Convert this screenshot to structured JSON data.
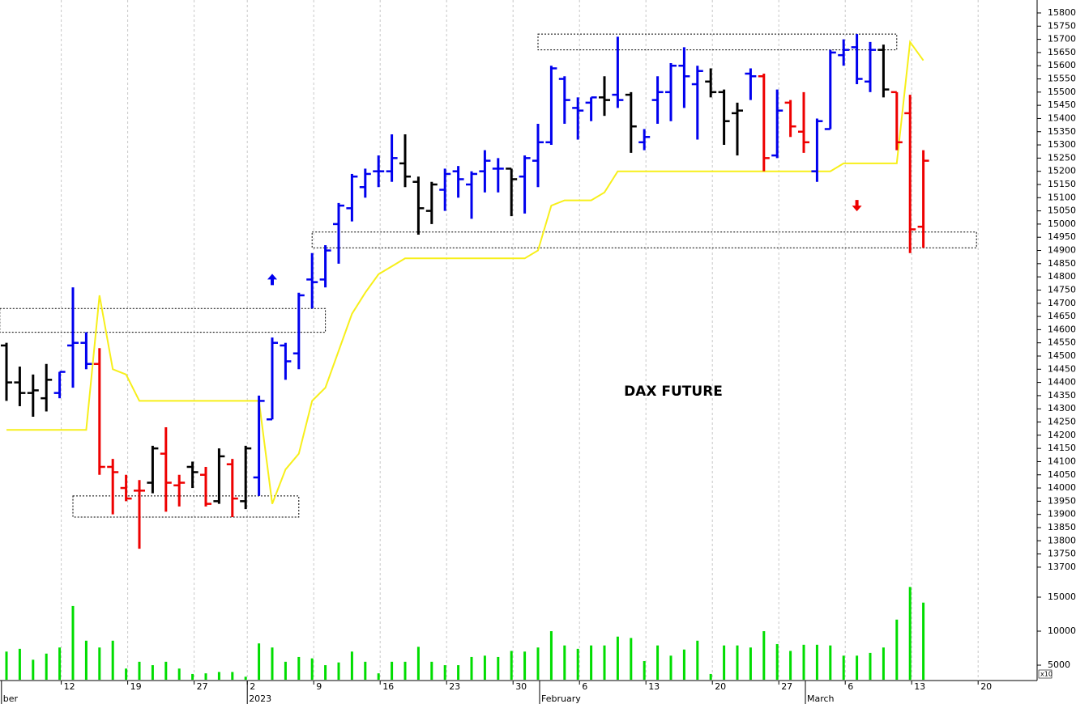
{
  "chart_data": [
    {
      "type": "ohlc",
      "title": "DAX FUTURE",
      "categories": [
        null,
        null,
        null,
        null,
        "12",
        null,
        null,
        null,
        null,
        "19",
        null,
        null,
        null,
        null,
        "27",
        null,
        null,
        null,
        "2",
        null,
        null,
        null,
        null,
        "9",
        null,
        null,
        null,
        null,
        "16",
        null,
        null,
        null,
        null,
        "23",
        null,
        null,
        null,
        null,
        "30",
        null,
        null,
        null,
        null,
        "6",
        null,
        null,
        null,
        null,
        "13",
        null,
        null,
        null,
        null,
        "20",
        null,
        null,
        null,
        null,
        "27",
        null,
        null,
        null,
        null,
        "6",
        null,
        null,
        null,
        null,
        "13",
        null,
        null,
        null,
        null,
        "20"
      ],
      "x_periods": [
        {
          "index": -0.5,
          "label": "ber"
        },
        {
          "index": 18,
          "label": "2023"
        },
        {
          "index": 40,
          "label": "February"
        },
        {
          "index": 60,
          "label": "March"
        }
      ],
      "open": [
        14540,
        14400,
        14360,
        14340,
        14360,
        14540,
        14550,
        14470,
        14080,
        14000,
        13990,
        14020,
        14130,
        14010,
        14080,
        14050,
        13950,
        14090,
        13950,
        14040,
        14260,
        14540,
        14510,
        14790,
        14790,
        15000,
        15060,
        15140,
        15200,
        15200,
        15230,
        15160,
        15050,
        15130,
        15200,
        15150,
        15200,
        15210,
        15210,
        15180,
        15240,
        15310,
        15550,
        15440,
        15460,
        15480,
        15490,
        15490,
        15310,
        15470,
        15500,
        15600,
        15530,
        15540,
        15500,
        15420,
        15570,
        15560,
        15260,
        15460,
        15350,
        15200,
        15360,
        15640,
        15670,
        15540,
        15660,
        15500,
        15420,
        14990,
        null,
        null,
        null,
        null
      ],
      "high": [
        14550,
        14460,
        14430,
        14470,
        14440,
        14760,
        14590,
        14530,
        14110,
        14050,
        14030,
        14160,
        14230,
        14050,
        14100,
        14080,
        14150,
        14110,
        14160,
        14350,
        14570,
        14550,
        14740,
        14890,
        14920,
        15080,
        15190,
        15210,
        15260,
        15340,
        15340,
        15180,
        15160,
        15210,
        15220,
        15200,
        15280,
        15250,
        15210,
        15260,
        15380,
        15600,
        15560,
        15480,
        15480,
        15560,
        15710,
        15500,
        15360,
        15560,
        15610,
        15670,
        15600,
        15590,
        15510,
        15460,
        15590,
        15570,
        15510,
        15470,
        15500,
        15400,
        15660,
        15700,
        15720,
        15690,
        15680,
        15500,
        15490,
        15280,
        null,
        null,
        null,
        null
      ],
      "low": [
        14330,
        14310,
        14270,
        14290,
        14340,
        14380,
        14450,
        14050,
        13900,
        13950,
        13770,
        13980,
        13910,
        13930,
        14000,
        13930,
        13940,
        13890,
        13920,
        13970,
        14260,
        14410,
        14450,
        14680,
        14760,
        14850,
        15010,
        15100,
        15140,
        15160,
        15140,
        14960,
        15000,
        15050,
        15100,
        15020,
        15120,
        15120,
        15030,
        15040,
        15140,
        15300,
        15380,
        15320,
        15390,
        15410,
        15440,
        15270,
        15280,
        15380,
        15390,
        15440,
        15320,
        15480,
        15300,
        15260,
        15470,
        15200,
        15250,
        15330,
        15270,
        15160,
        15360,
        15600,
        15530,
        15500,
        15480,
        15280,
        14890,
        14910,
        null,
        null,
        null,
        null
      ],
      "close": [
        14400,
        14360,
        14370,
        14410,
        14440,
        14550,
        14470,
        14080,
        14060,
        13960,
        13990,
        14150,
        14020,
        14020,
        14060,
        13940,
        14120,
        13960,
        14150,
        14330,
        14550,
        14480,
        14730,
        14780,
        14900,
        15070,
        15180,
        15190,
        15200,
        15250,
        15180,
        15060,
        15150,
        15190,
        15170,
        15190,
        15240,
        15210,
        15170,
        15250,
        15310,
        15590,
        15470,
        15430,
        15480,
        15470,
        15470,
        15370,
        15330,
        15500,
        15600,
        15560,
        15580,
        15500,
        15390,
        15430,
        15560,
        15250,
        15430,
        15370,
        15310,
        15390,
        15650,
        15660,
        15550,
        15660,
        15510,
        15310,
        14980,
        15240,
        null,
        null,
        null,
        null
      ],
      "colors": [
        "#000000",
        "#000000",
        "#000000",
        "#000000",
        "#0000ee",
        "#0000ee",
        "#0000ee",
        "#ee0000",
        "#ee0000",
        "#ee0000",
        "#ee0000",
        "#000000",
        "#ee0000",
        "#ee0000",
        "#000000",
        "#ee0000",
        "#000000",
        "#ee0000",
        "#000000",
        "#0000ee",
        "#0000ee",
        "#0000ee",
        "#0000ee",
        "#0000ee",
        "#0000ee",
        "#0000ee",
        "#0000ee",
        "#0000ee",
        "#0000ee",
        "#0000ee",
        "#000000",
        "#000000",
        "#000000",
        "#0000ee",
        "#0000ee",
        "#0000ee",
        "#0000ee",
        "#0000ee",
        "#000000",
        "#0000ee",
        "#0000ee",
        "#0000ee",
        "#0000ee",
        "#0000ee",
        "#0000ee",
        "#000000",
        "#0000ee",
        "#000000",
        "#0000ee",
        "#0000ee",
        "#0000ee",
        "#0000ee",
        "#0000ee",
        "#000000",
        "#000000",
        "#000000",
        "#0000ee",
        "#ee0000",
        "#0000ee",
        "#ee0000",
        "#ee0000",
        "#0000ee",
        "#0000ee",
        "#0000ee",
        "#0000ee",
        "#0000ee",
        "#000000",
        "#ee0000",
        "#ee0000",
        "#ee0000",
        null,
        null,
        null,
        null
      ],
      "line": {
        "color": "#f7ef1a",
        "values": [
          14220,
          14220,
          14220,
          14220,
          14220,
          14220,
          14220,
          14730,
          14450,
          14430,
          14330,
          14330,
          14330,
          14330,
          14330,
          14330,
          14330,
          14330,
          14330,
          14330,
          13940,
          14070,
          14130,
          14330,
          14380,
          14520,
          14660,
          14740,
          14810,
          14840,
          14870,
          14870,
          14870,
          14870,
          14870,
          14870,
          14870,
          14870,
          14870,
          14870,
          14900,
          15070,
          15090,
          15090,
          15090,
          15120,
          15200,
          15200,
          15200,
          15200,
          15200,
          15200,
          15200,
          15200,
          15200,
          15200,
          15200,
          15200,
          15200,
          15200,
          15200,
          15200,
          15200,
          15230,
          15230,
          15230,
          15230,
          15230,
          15690,
          15620,
          null,
          null,
          null,
          null
        ]
      },
      "zones": [
        {
          "start": -0.5,
          "end": 24,
          "high": 14680,
          "low": 14590
        },
        {
          "start": 5,
          "end": 22,
          "high": 13970,
          "low": 13890
        },
        {
          "start": 23,
          "end": 73,
          "high": 14970,
          "low": 14910
        },
        {
          "start": 40,
          "end": 67,
          "high": 15720,
          "low": 15660
        }
      ],
      "signals": [
        {
          "index": 20,
          "value": 14790,
          "direction": "up",
          "color": "#0000ee"
        },
        {
          "index": 64,
          "value": 15070,
          "direction": "down",
          "color": "#ee0000"
        }
      ],
      "ylim": [
        13666,
        15849
      ],
      "yticks": [
        13700,
        13750,
        13800,
        13850,
        13900,
        13950,
        14000,
        14050,
        14100,
        14150,
        14200,
        14250,
        14300,
        14350,
        14400,
        14450,
        14500,
        14550,
        14600,
        14650,
        14700,
        14750,
        14800,
        14850,
        14900,
        14950,
        15000,
        15050,
        15100,
        15150,
        15200,
        15250,
        15300,
        15350,
        15400,
        15450,
        15500,
        15550,
        15600,
        15650,
        15700,
        15750,
        15800
      ],
      "grid": "x"
    },
    {
      "type": "bar",
      "color": "#00dd00",
      "unit_label": "x10",
      "values": [
        7000,
        7400,
        5800,
        6700,
        7600,
        13700,
        8600,
        7600,
        8600,
        4500,
        5500,
        5000,
        5500,
        4500,
        3700,
        3800,
        4000,
        4000,
        3300,
        8200,
        7600,
        5500,
        6200,
        6000,
        5000,
        5400,
        7000,
        5500,
        3800,
        5500,
        5500,
        7700,
        5500,
        5000,
        5000,
        6200,
        6400,
        6200,
        7100,
        7000,
        7600,
        10000,
        7900,
        7400,
        7900,
        7900,
        9200,
        9000,
        5600,
        7900,
        6400,
        7300,
        8600,
        3700,
        7900,
        7900,
        7600,
        10000,
        8100,
        7100,
        8000,
        8000,
        7900,
        6400,
        6400,
        6800,
        7600,
        11700,
        16500,
        14200,
        null,
        null,
        null,
        null
      ],
      "ylim": [
        2860,
        17140
      ],
      "yticks": [
        5000,
        10000,
        15000
      ]
    }
  ]
}
